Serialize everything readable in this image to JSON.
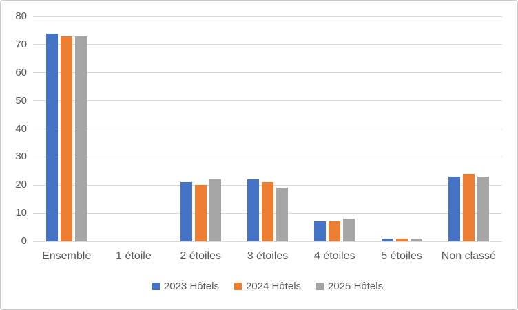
{
  "chart": {
    "background": "#FFFFFF",
    "border_color": "#C9C9C9",
    "gridline_color": "#D9D9D9",
    "axis_text_color": "#595959"
  },
  "chart_data": {
    "type": "bar",
    "title": "",
    "xlabel": "",
    "ylabel": "",
    "categories": [
      "Ensemble",
      "1 étoile",
      "2 étoiles",
      "3 étoiles",
      "4 étoiles",
      "5 étoiles",
      "Non classé"
    ],
    "series": [
      {
        "name": "2023 Hôtels",
        "color": "#4472C4",
        "values": [
          74,
          0,
          21,
          22,
          7,
          1,
          23
        ]
      },
      {
        "name": "2024 Hôtels",
        "color": "#ED7D31",
        "values": [
          73,
          0,
          20,
          21,
          7,
          1,
          24
        ]
      },
      {
        "name": "2025 Hôtels",
        "color": "#A5A5A5",
        "values": [
          73,
          0,
          22,
          19,
          8,
          1,
          23
        ]
      }
    ],
    "ylim": [
      0,
      80
    ],
    "yticks": [
      0,
      10,
      20,
      30,
      40,
      50,
      60,
      70,
      80
    ],
    "grid": true,
    "legend_position": "bottom"
  }
}
